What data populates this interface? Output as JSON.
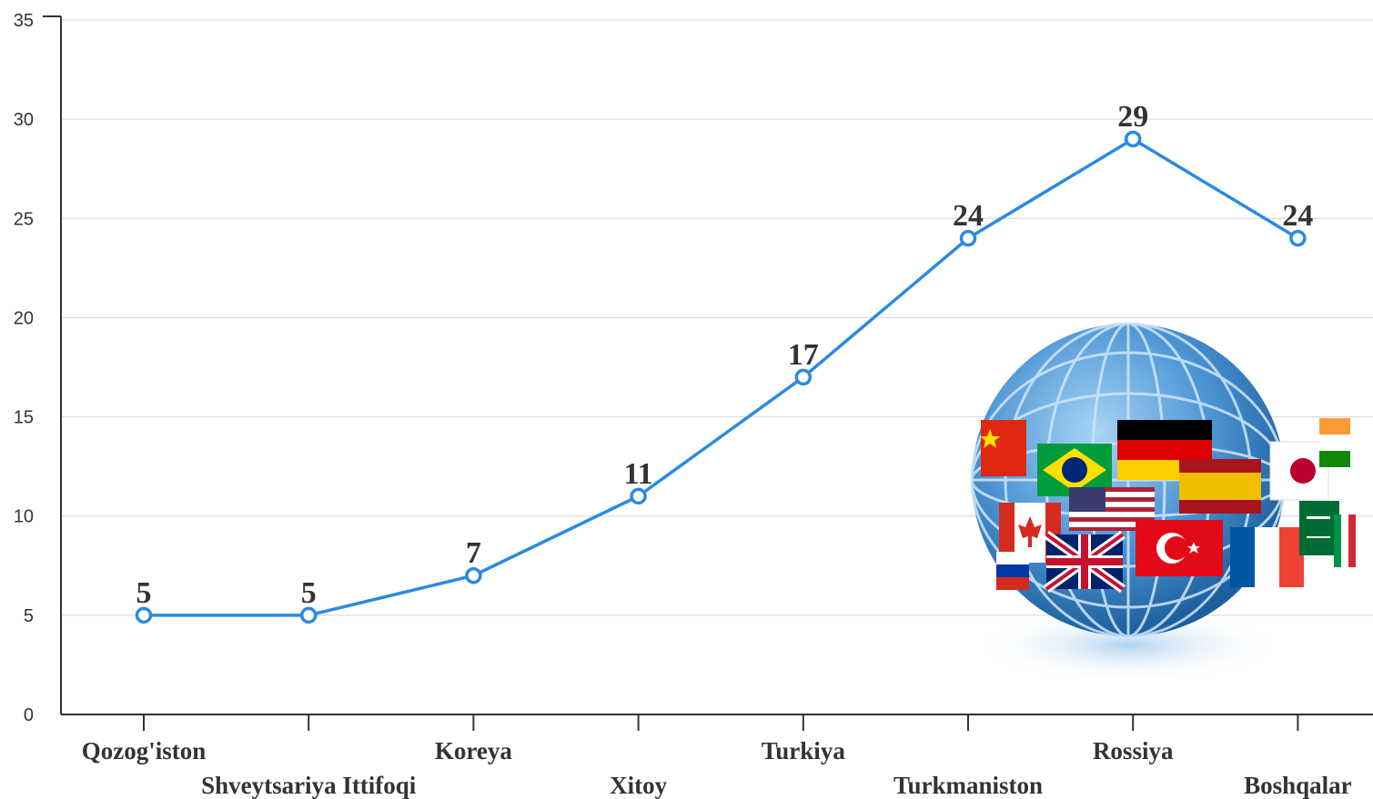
{
  "chart_data": {
    "type": "line",
    "categories": [
      "Qozog'iston",
      "Shveytsariya Ittifoqi",
      "Koreya",
      "Xitoy",
      "Turkiya",
      "Turkmaniston",
      "Rossiya",
      "Boshqalar"
    ],
    "values": [
      5,
      5,
      7,
      11,
      17,
      24,
      29,
      24
    ],
    "data_labels": [
      "5",
      "5",
      "7",
      "11",
      "17",
      "24",
      "29",
      "24"
    ],
    "yticks": [
      "0",
      "5",
      "10",
      "15",
      "20",
      "25",
      "30",
      "35"
    ],
    "ylim": [
      0,
      35
    ],
    "grid": true,
    "line_color": "#2b8ae0",
    "image": "globe-with-flags"
  }
}
